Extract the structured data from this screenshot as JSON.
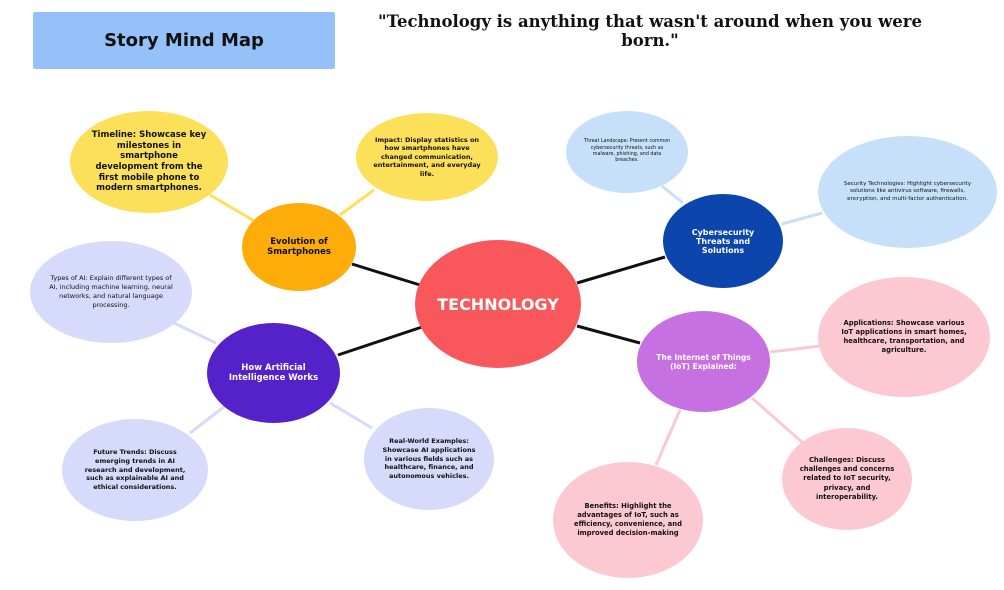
{
  "header": {
    "title": "Story Mind Map",
    "quote": "\"Technology is anything that wasn't around when you were born.\""
  },
  "center": {
    "label": "TECHNOLOGY"
  },
  "branches": {
    "smartphones": {
      "label": "Evolution of Smartphones",
      "timeline": "Timeline: Showcase key milestones in smartphone development from the first mobile phone to modern smartphones.",
      "impact": "Impact: Display statistics on how smartphones have changed communication, entertainment, and everyday life."
    },
    "cybersecurity": {
      "label": "Cybersecurity Threats and Solutions",
      "threat_landscape": "Threat Landscape: Present common cybersecurity threats, such as malware, phishing, and data breaches.",
      "security_technologies": "Security Technologies: Highlight cybersecurity solutions like antivirus software, firewalls, encryption, and multi-factor authentication."
    },
    "ai": {
      "label": "How Artificial Intelligence Works",
      "types": "Types of AI: Explain different types of AI, including machine learning, neural networks, and natural language processing.",
      "future_trends": "Future Trends: Discuss emerging trends in AI research and development, such as explainable AI and ethical considerations.",
      "real_world": "Real-World Examples: Showcase AI applications in various fields such as healthcare, finance, and autonomous vehicles."
    },
    "iot": {
      "label": "The Internet of Things (IoT) Explained:",
      "applications": "Applications: Showcase various IoT applications in smart homes, healthcare, transportation, and agriculture.",
      "challenges": "Challenges: Discuss challenges and concerns related to IoT security, privacy, and interoperability.",
      "benefits": "Benefits: Highlight the advantages of IoT, such as efficiency, convenience, and improved decision-making"
    }
  },
  "colors": {
    "title_box": "#94c1f7",
    "center": "#f8585c",
    "smartphones_main": "#fdac0a",
    "smartphones_sub": "#fde05a",
    "cyber_main": "#0c45ab",
    "cyber_sub": "#c6e0fa",
    "ai_main": "#5521c9",
    "ai_sub": "#d6dafb",
    "iot_main": "#c670e2",
    "iot_sub": "#fcc9d2",
    "main_connector": "#111111"
  }
}
